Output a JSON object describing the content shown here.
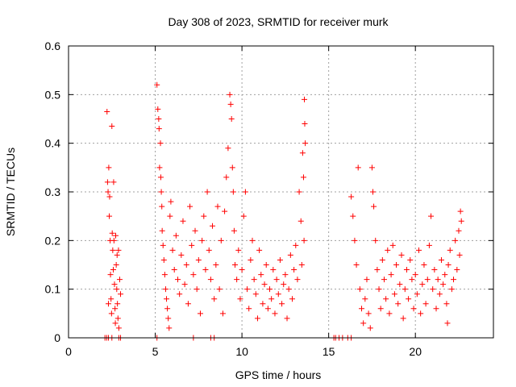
{
  "chart_data": {
    "type": "scatter",
    "title": "Day 308 of 2023, SRMTID for receiver murk",
    "xlabel": "GPS time / hours",
    "ylabel": "SRMTID / TECUs",
    "xlim": [
      0,
      24.5
    ],
    "ylim": [
      0,
      0.6
    ],
    "xticks": [
      0,
      5,
      10,
      15,
      20
    ],
    "xtick_labels": [
      "0",
      "5",
      "10",
      "15",
      "20"
    ],
    "yticks": [
      0,
      0.1,
      0.2,
      0.3,
      0.4,
      0.5,
      0.6
    ],
    "ytick_labels": [
      "0",
      "0.1",
      "0.2",
      "0.3",
      "0.4",
      "0.5",
      "0.6"
    ],
    "grid": true,
    "marker": "+",
    "color": "#ff0000",
    "series": [
      {
        "values": [
          [
            2.1,
            0.0
          ],
          [
            2.2,
            0.0
          ],
          [
            2.3,
            0.0
          ],
          [
            2.5,
            0.0
          ],
          [
            2.9,
            0.0
          ],
          [
            3.0,
            0.0
          ],
          [
            5.1,
            0.0
          ],
          [
            7.2,
            0.0
          ],
          [
            8.2,
            0.0
          ],
          [
            8.4,
            0.0
          ],
          [
            15.3,
            0.0
          ],
          [
            15.4,
            0.0
          ],
          [
            15.6,
            0.0
          ],
          [
            15.8,
            0.0
          ],
          [
            16.1,
            0.0
          ],
          [
            16.3,
            0.0
          ],
          [
            2.22,
            0.465
          ],
          [
            2.25,
            0.32
          ],
          [
            2.28,
            0.3
          ],
          [
            2.32,
            0.35
          ],
          [
            2.35,
            0.25
          ],
          [
            2.37,
            0.29
          ],
          [
            2.4,
            0.2
          ],
          [
            2.42,
            0.13
          ],
          [
            2.45,
            0.08
          ],
          [
            2.48,
            0.05
          ],
          [
            2.5,
            0.435
          ],
          [
            2.52,
            0.215
          ],
          [
            2.55,
            0.18
          ],
          [
            2.58,
            0.14
          ],
          [
            2.6,
            0.32
          ],
          [
            2.62,
            0.2
          ],
          [
            2.65,
            0.11
          ],
          [
            2.68,
            0.06
          ],
          [
            2.7,
            0.03
          ],
          [
            2.72,
            0.21
          ],
          [
            2.75,
            0.15
          ],
          [
            2.78,
            0.1
          ],
          [
            2.8,
            0.17
          ],
          [
            2.82,
            0.07
          ],
          [
            2.85,
            0.04
          ],
          [
            2.88,
            0.18
          ],
          [
            2.9,
            0.02
          ],
          [
            2.95,
            0.12
          ],
          [
            3.0,
            0.09
          ],
          [
            2.3,
            0.07
          ],
          [
            5.1,
            0.52
          ],
          [
            5.15,
            0.47
          ],
          [
            5.2,
            0.45
          ],
          [
            5.22,
            0.43
          ],
          [
            5.25,
            0.35
          ],
          [
            5.3,
            0.4
          ],
          [
            5.32,
            0.33
          ],
          [
            5.35,
            0.3
          ],
          [
            5.38,
            0.27
          ],
          [
            5.4,
            0.22
          ],
          [
            5.45,
            0.19
          ],
          [
            5.5,
            0.16
          ],
          [
            5.55,
            0.13
          ],
          [
            5.6,
            0.1
          ],
          [
            5.65,
            0.08
          ],
          [
            5.7,
            0.06
          ],
          [
            5.75,
            0.04
          ],
          [
            5.8,
            0.02
          ],
          [
            5.85,
            0.25
          ],
          [
            5.9,
            0.28
          ],
          [
            6.0,
            0.18
          ],
          [
            6.1,
            0.14
          ],
          [
            6.2,
            0.21
          ],
          [
            6.3,
            0.12
          ],
          [
            6.4,
            0.09
          ],
          [
            6.5,
            0.17
          ],
          [
            6.6,
            0.24
          ],
          [
            6.7,
            0.11
          ],
          [
            6.8,
            0.15
          ],
          [
            6.9,
            0.07
          ],
          [
            7.0,
            0.27
          ],
          [
            7.1,
            0.19
          ],
          [
            7.2,
            0.13
          ],
          [
            7.3,
            0.22
          ],
          [
            7.4,
            0.1
          ],
          [
            7.5,
            0.16
          ],
          [
            7.6,
            0.05
          ],
          [
            7.7,
            0.2
          ],
          [
            7.8,
            0.25
          ],
          [
            7.9,
            0.14
          ],
          [
            8.0,
            0.3
          ],
          [
            8.1,
            0.18
          ],
          [
            8.2,
            0.12
          ],
          [
            8.3,
            0.23
          ],
          [
            8.4,
            0.08
          ],
          [
            8.5,
            0.15
          ],
          [
            8.6,
            0.27
          ],
          [
            8.7,
            0.1
          ],
          [
            8.8,
            0.2
          ],
          [
            8.9,
            0.05
          ],
          [
            9.0,
            0.26
          ],
          [
            9.1,
            0.33
          ],
          [
            9.2,
            0.39
          ],
          [
            9.3,
            0.5
          ],
          [
            9.35,
            0.48
          ],
          [
            9.4,
            0.45
          ],
          [
            9.45,
            0.35
          ],
          [
            9.5,
            0.3
          ],
          [
            9.55,
            0.22
          ],
          [
            9.6,
            0.15
          ],
          [
            9.7,
            0.12
          ],
          [
            9.8,
            0.18
          ],
          [
            9.9,
            0.08
          ],
          [
            10.0,
            0.14
          ],
          [
            10.1,
            0.25
          ],
          [
            10.2,
            0.3
          ],
          [
            10.3,
            0.1
          ],
          [
            10.4,
            0.06
          ],
          [
            10.5,
            0.16
          ],
          [
            10.6,
            0.2
          ],
          [
            10.7,
            0.12
          ],
          [
            10.8,
            0.09
          ],
          [
            10.9,
            0.04
          ],
          [
            11.0,
            0.18
          ],
          [
            11.1,
            0.13
          ],
          [
            11.2,
            0.07
          ],
          [
            11.3,
            0.11
          ],
          [
            11.4,
            0.15
          ],
          [
            11.5,
            0.06
          ],
          [
            11.6,
            0.1
          ],
          [
            11.7,
            0.08
          ],
          [
            11.8,
            0.14
          ],
          [
            11.9,
            0.05
          ],
          [
            12.0,
            0.12
          ],
          [
            12.1,
            0.09
          ],
          [
            12.2,
            0.16
          ],
          [
            12.3,
            0.07
          ],
          [
            12.4,
            0.11
          ],
          [
            12.5,
            0.13
          ],
          [
            12.6,
            0.04
          ],
          [
            12.7,
            0.1
          ],
          [
            12.8,
            0.17
          ],
          [
            12.9,
            0.08
          ],
          [
            13.0,
            0.14
          ],
          [
            13.1,
            0.19
          ],
          [
            13.2,
            0.12
          ],
          [
            13.3,
            0.3
          ],
          [
            13.4,
            0.24
          ],
          [
            13.5,
            0.38
          ],
          [
            13.55,
            0.33
          ],
          [
            13.6,
            0.49
          ],
          [
            13.62,
            0.44
          ],
          [
            13.65,
            0.4
          ],
          [
            13.58,
            0.2
          ],
          [
            13.45,
            0.15
          ],
          [
            16.3,
            0.29
          ],
          [
            16.4,
            0.25
          ],
          [
            16.5,
            0.2
          ],
          [
            16.6,
            0.15
          ],
          [
            16.7,
            0.35
          ],
          [
            16.8,
            0.1
          ],
          [
            16.9,
            0.06
          ],
          [
            17.0,
            0.03
          ],
          [
            17.1,
            0.08
          ],
          [
            17.2,
            0.12
          ],
          [
            17.3,
            0.05
          ],
          [
            17.4,
            0.02
          ],
          [
            17.5,
            0.35
          ],
          [
            17.55,
            0.3
          ],
          [
            17.6,
            0.27
          ],
          [
            17.7,
            0.2
          ],
          [
            17.8,
            0.14
          ],
          [
            17.9,
            0.1
          ],
          [
            18.0,
            0.06
          ],
          [
            18.1,
            0.16
          ],
          [
            18.2,
            0.12
          ],
          [
            18.3,
            0.08
          ],
          [
            18.4,
            0.18
          ],
          [
            18.5,
            0.05
          ],
          [
            18.6,
            0.13
          ],
          [
            18.7,
            0.19
          ],
          [
            18.8,
            0.09
          ],
          [
            18.9,
            0.15
          ],
          [
            19.0,
            0.07
          ],
          [
            19.1,
            0.11
          ],
          [
            19.2,
            0.17
          ],
          [
            19.3,
            0.04
          ],
          [
            19.4,
            0.1
          ],
          [
            19.5,
            0.14
          ],
          [
            19.6,
            0.08
          ],
          [
            19.7,
            0.16
          ],
          [
            19.8,
            0.12
          ],
          [
            19.9,
            0.06
          ],
          [
            20.0,
            0.13
          ],
          [
            20.1,
            0.09
          ],
          [
            20.2,
            0.18
          ],
          [
            20.3,
            0.05
          ],
          [
            20.4,
            0.11
          ],
          [
            20.5,
            0.15
          ],
          [
            20.6,
            0.07
          ],
          [
            20.7,
            0.12
          ],
          [
            20.8,
            0.19
          ],
          [
            20.9,
            0.25
          ],
          [
            21.0,
            0.1
          ],
          [
            21.1,
            0.14
          ],
          [
            21.2,
            0.06
          ],
          [
            21.3,
            0.12
          ],
          [
            21.4,
            0.09
          ],
          [
            21.5,
            0.16
          ],
          [
            21.6,
            0.11
          ],
          [
            21.7,
            0.13
          ],
          [
            21.8,
            0.07
          ],
          [
            21.9,
            0.15
          ],
          [
            22.0,
            0.18
          ],
          [
            22.1,
            0.1
          ],
          [
            22.2,
            0.12
          ],
          [
            22.3,
            0.2
          ],
          [
            22.4,
            0.14
          ],
          [
            22.5,
            0.22
          ],
          [
            22.6,
            0.26
          ],
          [
            22.65,
            0.24
          ],
          [
            22.55,
            0.17
          ],
          [
            21.85,
            0.03
          ]
        ]
      }
    ]
  }
}
